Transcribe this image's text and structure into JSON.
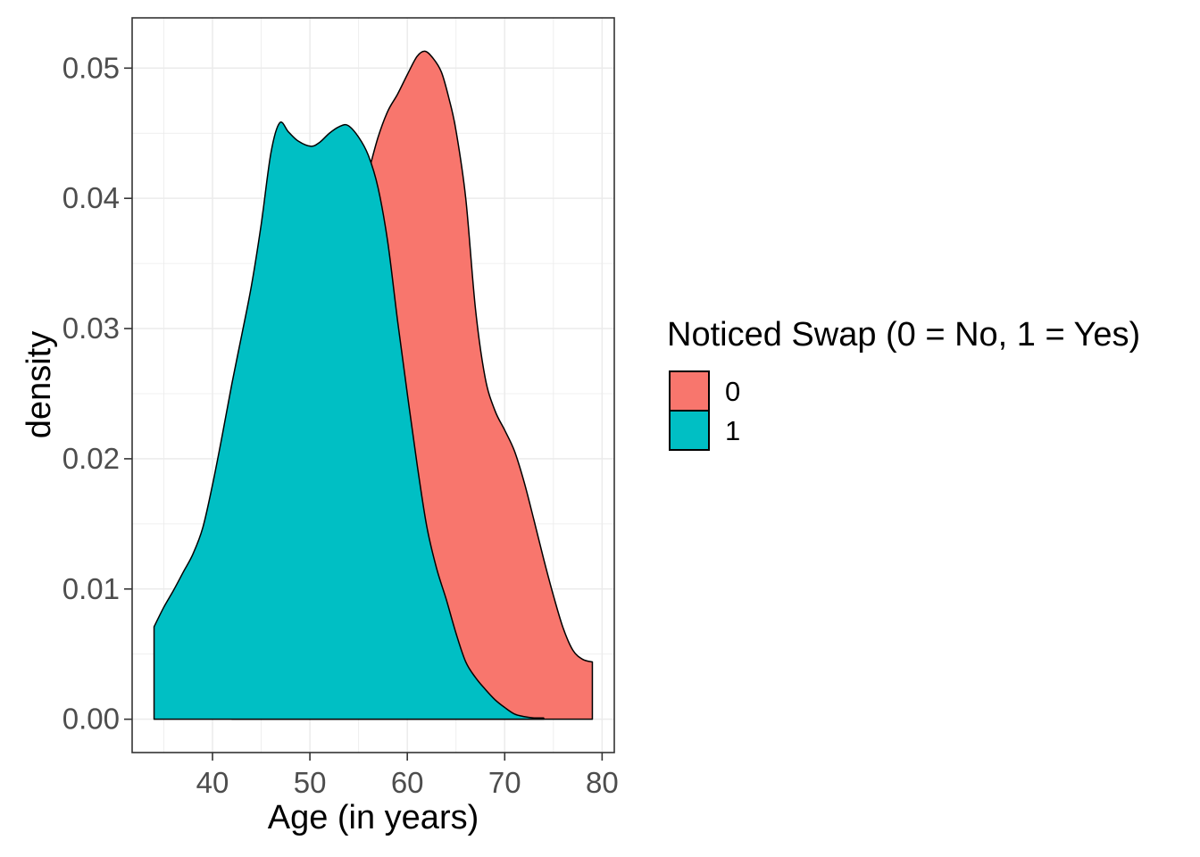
{
  "chart_data": {
    "type": "area",
    "subtype": "kernel-density",
    "title": "",
    "xlabel": "Age (in years)",
    "ylabel": "density",
    "xlim": [
      31.75,
      81.25
    ],
    "ylim": [
      -0.00256,
      0.05386
    ],
    "x_ticks": [
      40,
      50,
      60,
      70,
      80
    ],
    "x_tick_labels": [
      "40",
      "50",
      "60",
      "70",
      "80"
    ],
    "x_minor_ticks": [
      35,
      45,
      55,
      65,
      75
    ],
    "y_ticks": [
      0,
      0.01,
      0.02,
      0.03,
      0.04,
      0.05
    ],
    "y_tick_labels": [
      "0.00",
      "0.01",
      "0.02",
      "0.03",
      "0.04",
      "0.05"
    ],
    "y_minor_ticks": [
      0.005,
      0.015,
      0.025,
      0.035,
      0.045
    ],
    "grid": "major+minor",
    "legend_position": "right-center",
    "legend": {
      "title": "Noticed Swap (0 = No, 1 = Yes)",
      "entries": [
        {
          "label": "0",
          "color": "#F8766D"
        },
        {
          "label": "1",
          "color": "#00BFC4"
        }
      ]
    },
    "series": [
      {
        "name": "0",
        "fill": "#F8766D",
        "outline": "#000000",
        "points": [
          [
            42,
            0.0008
          ],
          [
            43,
            0.0025
          ],
          [
            44,
            0.0048
          ],
          [
            45,
            0.0075
          ],
          [
            46,
            0.0105
          ],
          [
            47,
            0.0138
          ],
          [
            48,
            0.0172
          ],
          [
            49,
            0.0205
          ],
          [
            50,
            0.0236
          ],
          [
            51,
            0.0268
          ],
          [
            52,
            0.03
          ],
          [
            53,
            0.0333
          ],
          [
            54,
            0.0365
          ],
          [
            55,
            0.0395
          ],
          [
            56,
            0.042
          ],
          [
            57,
            0.0447
          ],
          [
            58,
            0.0467
          ],
          [
            59,
            0.048
          ],
          [
            60,
            0.0495
          ],
          [
            61,
            0.0509
          ],
          [
            61.8,
            0.0513
          ],
          [
            62.6,
            0.0508
          ],
          [
            63.5,
            0.0497
          ],
          [
            64.3,
            0.0476
          ],
          [
            65,
            0.0452
          ],
          [
            66,
            0.04
          ],
          [
            67,
            0.0315
          ],
          [
            68,
            0.0262
          ],
          [
            69,
            0.0237
          ],
          [
            70,
            0.0222
          ],
          [
            71,
            0.0206
          ],
          [
            72,
            0.0182
          ],
          [
            73,
            0.0153
          ],
          [
            74,
            0.0123
          ],
          [
            75,
            0.0095
          ],
          [
            76,
            0.007
          ],
          [
            77,
            0.0053
          ],
          [
            78,
            0.0046
          ],
          [
            79,
            0.0044
          ]
        ]
      },
      {
        "name": "1",
        "fill": "#00BFC4",
        "outline": "#000000",
        "points": [
          [
            34,
            0.0071
          ],
          [
            35,
            0.0086
          ],
          [
            36,
            0.0099
          ],
          [
            37,
            0.0113
          ],
          [
            38,
            0.0127
          ],
          [
            39,
            0.0147
          ],
          [
            40,
            0.018
          ],
          [
            41,
            0.0218
          ],
          [
            42,
            0.0258
          ],
          [
            43,
            0.0295
          ],
          [
            44,
            0.0333
          ],
          [
            45,
            0.038
          ],
          [
            46,
            0.0435
          ],
          [
            46.9,
            0.0458
          ],
          [
            47.8,
            0.0451
          ],
          [
            48.8,
            0.0444
          ],
          [
            50.1,
            0.044
          ],
          [
            51,
            0.0443
          ],
          [
            52,
            0.045
          ],
          [
            53,
            0.0455
          ],
          [
            53.9,
            0.0456
          ],
          [
            55,
            0.0447
          ],
          [
            56,
            0.0433
          ],
          [
            57,
            0.0408
          ],
          [
            58,
            0.0366
          ],
          [
            59,
            0.0306
          ],
          [
            60,
            0.025
          ],
          [
            61,
            0.0196
          ],
          [
            62,
            0.0148
          ],
          [
            63,
            0.0116
          ],
          [
            64,
            0.0092
          ],
          [
            65,
            0.0066
          ],
          [
            66,
            0.0044
          ],
          [
            67,
            0.0032
          ],
          [
            68,
            0.0023
          ],
          [
            69,
            0.0015
          ],
          [
            70,
            0.0009
          ],
          [
            71,
            0.0004
          ],
          [
            72,
            0.0002
          ],
          [
            73,
            0.0001
          ],
          [
            74,
            0.0001
          ]
        ]
      }
    ]
  }
}
